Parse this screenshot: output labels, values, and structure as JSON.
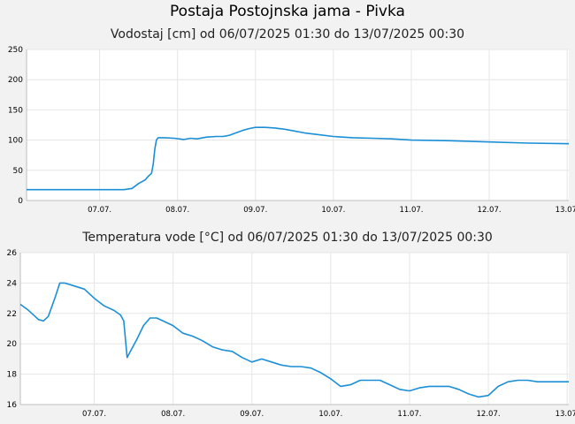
{
  "header": {
    "title": "Postaja Postojnska jama - Pivka"
  },
  "chart_data": [
    {
      "type": "line",
      "title": "Vodostaj [cm] od 06/07/2025 01:30 do 13/07/2025 00:30",
      "xlabel": "",
      "ylabel": "",
      "xlim": [
        "06/07/2025 01:30",
        "13/07/2025 00:30"
      ],
      "ylim": [
        0,
        250
      ],
      "yticks": [
        0,
        50,
        100,
        150,
        200,
        250
      ],
      "xtick_labels": [
        "07.07.",
        "08.07.",
        "09.07.",
        "10.07.",
        "11.07.",
        "12.07.",
        "13.07."
      ],
      "grid": true,
      "color": "#1b8fd6",
      "series": [
        {
          "x": [
            "06/07/2025 01:30",
            "06/07/2025 12:00",
            "07/07/2025 00:00",
            "07/07/2025 07:30",
            "07/07/2025 10:00",
            "07/07/2025 12:00",
            "07/07/2025 14:00",
            "07/07/2025 15:00",
            "07/07/2025 16:00",
            "07/07/2025 16:30",
            "07/07/2025 17:00",
            "07/07/2025 17:30",
            "07/07/2025 18:00",
            "07/07/2025 20:00",
            "07/07/2025 23:00",
            "08/07/2025 02:00",
            "08/07/2025 04:00",
            "08/07/2025 06:00",
            "08/07/2025 09:00",
            "08/07/2025 12:00",
            "08/07/2025 14:00",
            "08/07/2025 16:00",
            "08/07/2025 18:00",
            "08/07/2025 20:00",
            "08/07/2025 22:00",
            "09/07/2025 00:00",
            "09/07/2025 03:00",
            "09/07/2025 06:00",
            "09/07/2025 09:00",
            "09/07/2025 12:00",
            "09/07/2025 15:00",
            "09/07/2025 18:00",
            "10/07/2025 00:00",
            "10/07/2025 06:00",
            "10/07/2025 12:00",
            "10/07/2025 18:00",
            "11/07/2025 00:00",
            "11/07/2025 12:00",
            "12/07/2025 00:00",
            "12/07/2025 12:00",
            "13/07/2025 00:30"
          ],
          "values": [
            18,
            18,
            18,
            18,
            20,
            28,
            34,
            40,
            45,
            60,
            85,
            100,
            104,
            104,
            103,
            101,
            103,
            102,
            105,
            106,
            106,
            108,
            112,
            116,
            119,
            121,
            121,
            120,
            118,
            115,
            112,
            110,
            106,
            104,
            103,
            102,
            100,
            99,
            97,
            95,
            94
          ]
        }
      ]
    },
    {
      "type": "line",
      "title": "Temperatura vode [°C] od 06/07/2025 01:30 do 13/07/2025 00:30",
      "xlabel": "",
      "ylabel": "",
      "xlim": [
        "06/07/2025 01:30",
        "13/07/2025 00:30"
      ],
      "ylim": [
        16,
        26
      ],
      "yticks": [
        16,
        18,
        20,
        22,
        24,
        26
      ],
      "xtick_labels": [
        "07.07.",
        "08.07.",
        "09.07.",
        "10.07.",
        "11.07.",
        "12.07.",
        "13.07."
      ],
      "grid": true,
      "color": "#1b8fd6",
      "series": [
        {
          "x": [
            "06/07/2025 01:30",
            "06/07/2025 04:00",
            "06/07/2025 07:00",
            "06/07/2025 08:30",
            "06/07/2025 10:00",
            "06/07/2025 12:00",
            "06/07/2025 13:30",
            "06/07/2025 15:00",
            "06/07/2025 18:00",
            "06/07/2025 21:00",
            "07/07/2025 00:00",
            "07/07/2025 03:00",
            "07/07/2025 06:00",
            "07/07/2025 08:00",
            "07/07/2025 09:00",
            "07/07/2025 10:00",
            "07/07/2025 11:00",
            "07/07/2025 13:00",
            "07/07/2025 15:00",
            "07/07/2025 17:00",
            "07/07/2025 19:00",
            "07/07/2025 21:00",
            "08/07/2025 00:00",
            "08/07/2025 03:00",
            "08/07/2025 06:00",
            "08/07/2025 09:00",
            "08/07/2025 12:00",
            "08/07/2025 15:00",
            "08/07/2025 18:00",
            "08/07/2025 21:00",
            "09/07/2025 00:00",
            "09/07/2025 03:00",
            "09/07/2025 06:00",
            "09/07/2025 09:00",
            "09/07/2025 12:00",
            "09/07/2025 15:00",
            "09/07/2025 18:00",
            "09/07/2025 21:00",
            "10/07/2025 00:00",
            "10/07/2025 03:00",
            "10/07/2025 06:00",
            "10/07/2025 09:00",
            "10/07/2025 12:00",
            "10/07/2025 15:00",
            "10/07/2025 18:00",
            "10/07/2025 21:00",
            "11/07/2025 00:00",
            "11/07/2025 03:00",
            "11/07/2025 06:00",
            "11/07/2025 09:00",
            "11/07/2025 12:00",
            "11/07/2025 15:00",
            "11/07/2025 18:00",
            "11/07/2025 21:00",
            "12/07/2025 00:00",
            "12/07/2025 03:00",
            "12/07/2025 06:00",
            "12/07/2025 09:00",
            "12/07/2025 12:00",
            "12/07/2025 15:00",
            "12/07/2025 18:00",
            "12/07/2025 21:00",
            "13/07/2025 00:30"
          ],
          "values": [
            22.6,
            22.2,
            21.6,
            21.5,
            21.8,
            23.0,
            24.0,
            24.0,
            23.8,
            23.6,
            23.0,
            22.5,
            22.2,
            21.9,
            21.5,
            19.1,
            19.5,
            20.3,
            21.2,
            21.7,
            21.7,
            21.5,
            21.2,
            20.7,
            20.5,
            20.2,
            19.8,
            19.6,
            19.5,
            19.1,
            18.8,
            19.0,
            18.8,
            18.6,
            18.5,
            18.5,
            18.4,
            18.1,
            17.7,
            17.2,
            17.3,
            17.6,
            17.6,
            17.6,
            17.3,
            17.0,
            16.9,
            17.1,
            17.2,
            17.2,
            17.2,
            17.0,
            16.7,
            16.5,
            16.6,
            17.2,
            17.5,
            17.6,
            17.6,
            17.5,
            17.5,
            17.5,
            17.5
          ]
        }
      ]
    }
  ]
}
